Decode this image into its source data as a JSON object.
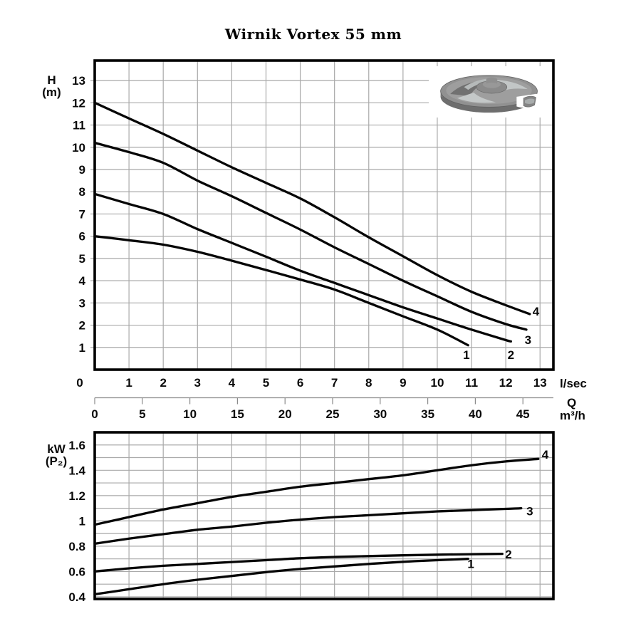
{
  "title": "Wirnik Vortex 55 mm",
  "axes_labels": {
    "top_y_name": "H",
    "top_y_unit": "(m)",
    "bottom_y_name": "kW",
    "bottom_y_unit": "(P₂)",
    "x_primary_unit": "l/sec",
    "x_symbol": "Q",
    "x_secondary_unit": "m³/h"
  },
  "impeller": {
    "name": "vortex-impeller-3d-render",
    "color_body": "#8f8f8f",
    "color_shadow": "#6e6e6e",
    "color_highlight": "#c4c8c8"
  },
  "chart_data": [
    {
      "id": "head-curves",
      "type": "line",
      "title": "Wirnik Vortex 55 mm",
      "xlabel": "Q",
      "x_units": [
        "l/sec",
        "m³/h"
      ],
      "ylabel": "H (m)",
      "xlim": [
        0,
        13.39
      ],
      "ylim": [
        0,
        13.9
      ],
      "grid": true,
      "x_ticks": [
        0,
        1,
        2,
        3,
        4,
        5,
        6,
        7,
        8,
        9,
        10,
        11,
        12,
        13
      ],
      "y_ticks": [
        1,
        2,
        3,
        4,
        5,
        6,
        7,
        8,
        9,
        10,
        11,
        12,
        13
      ],
      "secondary_x_ticks_m3h": [
        0,
        5,
        10,
        15,
        20,
        25,
        30,
        35,
        40,
        45
      ],
      "series": [
        {
          "name": "1",
          "points": [
            [
              0,
              6.0
            ],
            [
              1,
              5.82
            ],
            [
              2,
              5.62
            ],
            [
              3,
              5.3
            ],
            [
              4,
              4.9
            ],
            [
              5,
              4.48
            ],
            [
              6,
              4.05
            ],
            [
              7,
              3.6
            ],
            [
              8,
              3.0
            ],
            [
              9,
              2.4
            ],
            [
              10,
              1.8
            ],
            [
              10.9,
              1.1
            ]
          ],
          "label_at": [
            10.85,
            0.67
          ]
        },
        {
          "name": "2",
          "points": [
            [
              0,
              7.9
            ],
            [
              1,
              7.45
            ],
            [
              2,
              7.0
            ],
            [
              3,
              6.32
            ],
            [
              4,
              5.7
            ],
            [
              5,
              5.08
            ],
            [
              6,
              4.45
            ],
            [
              7,
              3.9
            ],
            [
              8,
              3.35
            ],
            [
              9,
              2.8
            ],
            [
              10,
              2.3
            ],
            [
              11,
              1.8
            ],
            [
              12,
              1.33
            ],
            [
              12.15,
              1.27
            ]
          ],
          "label_at": [
            12.15,
            0.67
          ]
        },
        {
          "name": "3",
          "points": [
            [
              0,
              10.2
            ],
            [
              1,
              9.78
            ],
            [
              2,
              9.3
            ],
            [
              3,
              8.5
            ],
            [
              4,
              7.8
            ],
            [
              5,
              7.05
            ],
            [
              6,
              6.3
            ],
            [
              7,
              5.5
            ],
            [
              8,
              4.75
            ],
            [
              9,
              4.0
            ],
            [
              10,
              3.3
            ],
            [
              11,
              2.6
            ],
            [
              12,
              2.05
            ],
            [
              12.6,
              1.8
            ]
          ],
          "label_at": [
            12.65,
            1.35
          ]
        },
        {
          "name": "4",
          "points": [
            [
              0,
              12.0
            ],
            [
              1,
              11.3
            ],
            [
              2,
              10.6
            ],
            [
              3,
              9.85
            ],
            [
              4,
              9.1
            ],
            [
              5,
              8.4
            ],
            [
              6,
              7.7
            ],
            [
              7,
              6.85
            ],
            [
              8,
              5.95
            ],
            [
              9,
              5.1
            ],
            [
              10,
              4.25
            ],
            [
              11,
              3.5
            ],
            [
              12,
              2.9
            ],
            [
              12.7,
              2.5
            ]
          ],
          "label_at": [
            12.88,
            2.62
          ]
        }
      ]
    },
    {
      "id": "power-curves",
      "type": "line",
      "xlabel": "Q",
      "ylabel": "kW (P₂)",
      "xlim": [
        0,
        13.39
      ],
      "ylim": [
        0.383,
        1.7
      ],
      "grid": true,
      "grid_y_step": 0.1,
      "x_gridlines": [
        1,
        2,
        3,
        4,
        5,
        6,
        7,
        8,
        9,
        10,
        11,
        12,
        13
      ],
      "y_ticks": [
        0.4,
        0.6,
        0.8,
        1,
        1.2,
        1.4,
        1.6
      ],
      "series": [
        {
          "name": "1",
          "points": [
            [
              0,
              0.42
            ],
            [
              1,
              0.46
            ],
            [
              2,
              0.5
            ],
            [
              3,
              0.535
            ],
            [
              4,
              0.565
            ],
            [
              5,
              0.595
            ],
            [
              6,
              0.62
            ],
            [
              7,
              0.64
            ],
            [
              8,
              0.66
            ],
            [
              9,
              0.677
            ],
            [
              10,
              0.69
            ],
            [
              10.9,
              0.7
            ]
          ],
          "label_at": [
            10.98,
            0.662
          ]
        },
        {
          "name": "2",
          "points": [
            [
              0,
              0.6
            ],
            [
              1,
              0.625
            ],
            [
              2,
              0.645
            ],
            [
              3,
              0.66
            ],
            [
              4,
              0.675
            ],
            [
              5,
              0.69
            ],
            [
              6,
              0.705
            ],
            [
              7,
              0.715
            ],
            [
              8,
              0.722
            ],
            [
              9,
              0.728
            ],
            [
              10,
              0.733
            ],
            [
              11,
              0.737
            ],
            [
              11.9,
              0.74
            ]
          ],
          "label_at": [
            12.08,
            0.737
          ]
        },
        {
          "name": "3",
          "points": [
            [
              0,
              0.82
            ],
            [
              1,
              0.86
            ],
            [
              2,
              0.895
            ],
            [
              3,
              0.93
            ],
            [
              4,
              0.955
            ],
            [
              5,
              0.985
            ],
            [
              6,
              1.01
            ],
            [
              7,
              1.03
            ],
            [
              8,
              1.045
            ],
            [
              9,
              1.06
            ],
            [
              10,
              1.075
            ],
            [
              11,
              1.085
            ],
            [
              12,
              1.095
            ],
            [
              12.45,
              1.1
            ]
          ],
          "label_at": [
            12.7,
            1.077
          ]
        },
        {
          "name": "4",
          "points": [
            [
              0,
              0.97
            ],
            [
              1,
              1.03
            ],
            [
              2,
              1.09
            ],
            [
              3,
              1.14
            ],
            [
              4,
              1.19
            ],
            [
              5,
              1.23
            ],
            [
              6,
              1.27
            ],
            [
              7,
              1.3
            ],
            [
              8,
              1.33
            ],
            [
              9,
              1.36
            ],
            [
              10,
              1.4
            ],
            [
              11,
              1.44
            ],
            [
              12,
              1.47
            ],
            [
              12.95,
              1.49
            ]
          ],
          "label_at": [
            13.15,
            1.525
          ]
        }
      ]
    }
  ]
}
